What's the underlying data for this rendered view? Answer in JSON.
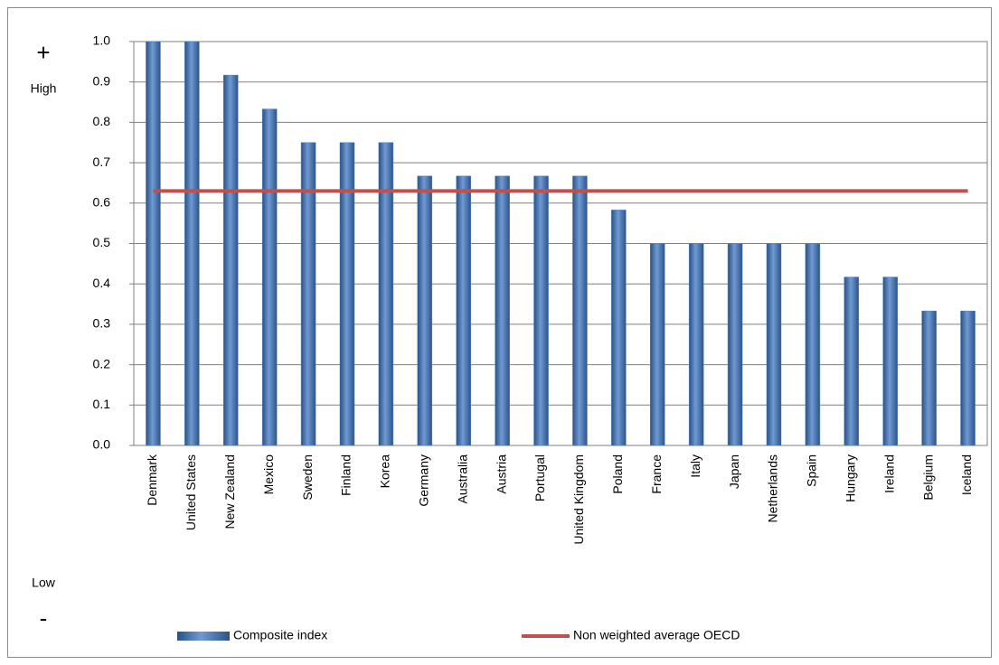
{
  "chart_data": {
    "type": "bar",
    "annotations": {
      "plus": "+",
      "high": "High",
      "low": "Low",
      "minus": "-"
    },
    "categories": [
      "Denmark",
      "United States",
      "New Zealand",
      "Mexico",
      "Sweden",
      "Finland",
      "Korea",
      "Germany",
      "Australia",
      "Austria",
      "Portugal",
      "United Kingdom",
      "Poland",
      "France",
      "Italy",
      "Japan",
      "Netherlands",
      "Spain",
      "Hungary",
      "Ireland",
      "Belgium",
      "Iceland"
    ],
    "series": [
      {
        "name": "Composite index",
        "type": "bar",
        "color": "#4f81bd",
        "values": [
          1.0,
          1.0,
          0.917,
          0.833,
          0.75,
          0.75,
          0.75,
          0.667,
          0.667,
          0.667,
          0.667,
          0.667,
          0.583,
          0.5,
          0.5,
          0.5,
          0.5,
          0.5,
          0.417,
          0.417,
          0.333,
          0.333
        ]
      },
      {
        "name": "Non weighted average OECD",
        "type": "line",
        "color": "#c0504d",
        "values": [
          0.63,
          0.63,
          0.63,
          0.63,
          0.63,
          0.63,
          0.63,
          0.63,
          0.63,
          0.63,
          0.63,
          0.63,
          0.63,
          0.63,
          0.63,
          0.63,
          0.63,
          0.63,
          0.63,
          0.63,
          0.63,
          0.63
        ]
      }
    ],
    "ylim": [
      0,
      1
    ],
    "yticks": [
      {
        "value": 0,
        "label": "0.0"
      },
      0.1,
      0.2,
      0.3,
      0.4,
      0.5,
      0.6,
      0.7,
      0.8,
      0.9,
      {
        "value": 1,
        "label": "1.0"
      }
    ],
    "grid": true
  }
}
